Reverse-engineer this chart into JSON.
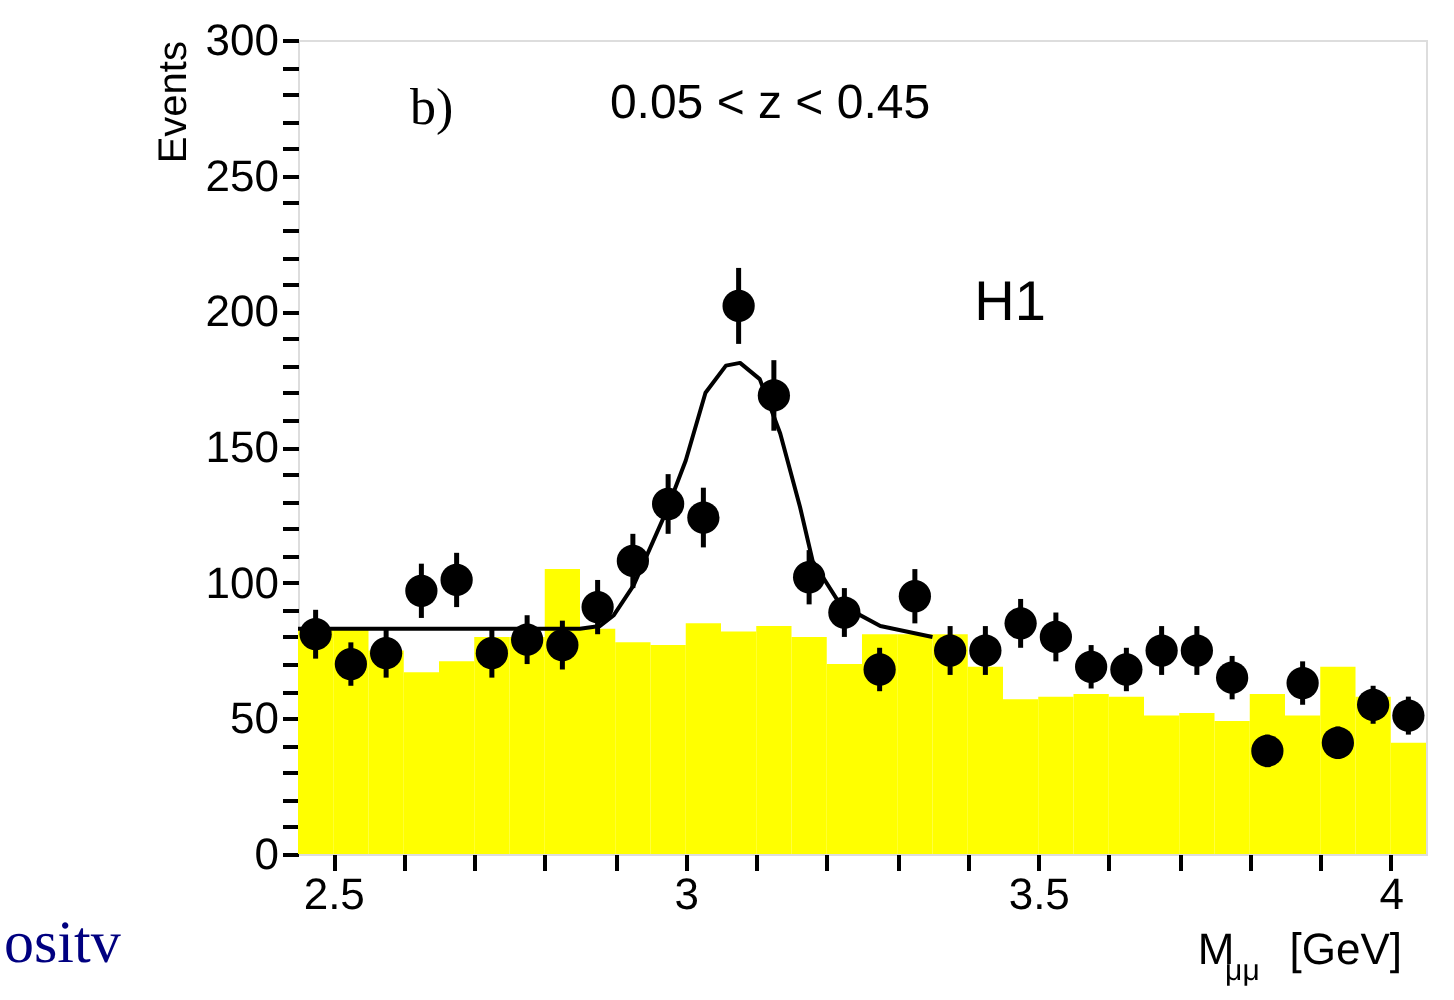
{
  "chart_data": {
    "type": "histogram",
    "xlabel": "M$_{μμ}$ [GeV]",
    "ylabel": "Events",
    "annotations": [
      "b)",
      "0.05 < z < 0.45",
      "H1",
      "ositv"
    ],
    "xlim": [
      2.45,
      4.05
    ],
    "ylim": [
      0,
      300
    ],
    "xticks": [
      {
        "value": 2.5,
        "label": "2.5"
      },
      {
        "value": 2.6,
        "label": null
      },
      {
        "value": 2.7,
        "label": null
      },
      {
        "value": 2.8,
        "label": null
      },
      {
        "value": 2.9,
        "label": null
      },
      {
        "value": 3,
        "label": "3"
      },
      {
        "value": 3.1,
        "label": null
      },
      {
        "value": 3.2,
        "label": null
      },
      {
        "value": 3.3,
        "label": null
      },
      {
        "value": 3.4,
        "label": null
      },
      {
        "value": 3.5,
        "label": "3.5"
      },
      {
        "value": 3.6,
        "label": null
      },
      {
        "value": 3.7,
        "label": null
      },
      {
        "value": 3.8,
        "label": null
      },
      {
        "value": 3.9,
        "label": null
      },
      {
        "value": 4,
        "label": "4"
      }
    ],
    "yticks": [
      0,
      {
        "value": 10,
        "label": null
      },
      {
        "value": 20,
        "label": null
      },
      {
        "value": 30,
        "label": null
      },
      {
        "value": 40,
        "label": null
      },
      50,
      {
        "value": 60,
        "label": null
      },
      {
        "value": 70,
        "label": null
      },
      {
        "value": 80,
        "label": null
      },
      {
        "value": 90,
        "label": null
      },
      100,
      {
        "value": 110,
        "label": null
      },
      {
        "value": 120,
        "label": null
      },
      {
        "value": 130,
        "label": null
      },
      {
        "value": 140,
        "label": null
      },
      150,
      {
        "value": 160,
        "label": null
      },
      {
        "value": 170,
        "label": null
      },
      {
        "value": 180,
        "label": null
      },
      {
        "value": 190,
        "label": null
      },
      200,
      {
        "value": 210,
        "label": null
      },
      {
        "value": 220,
        "label": null
      },
      {
        "value": 230,
        "label": null
      },
      {
        "value": 240,
        "label": null
      },
      250,
      {
        "value": 260,
        "label": null
      },
      {
        "value": 270,
        "label": null
      },
      {
        "value": 280,
        "label": null
      },
      {
        "value": 290,
        "label": null
      },
      300
    ],
    "grid": false,
    "series": [
      {
        "color": "#ffff00",
        "bins": [
          2.45,
          2.5,
          2.55,
          2.6,
          2.65,
          2.7,
          2.75,
          2.8,
          2.85,
          2.9,
          2.95,
          3.0,
          3.05,
          3.1,
          3.15,
          3.2,
          3.25,
          3.3,
          3.35,
          3.4,
          3.45,
          3.5,
          3.55,
          3.6,
          3.65,
          3.7,
          3.75,
          3.8,
          3.85,
          3.9,
          3.95,
          4.0,
          4.05
        ],
        "values": [
          83,
          83,
          75,
          67,
          71,
          80,
          80,
          105,
          83,
          78,
          77,
          85,
          82,
          84,
          80,
          70,
          81,
          81,
          81,
          69,
          57,
          58,
          59,
          58,
          51,
          52,
          49,
          59,
          51,
          69,
          58,
          41
        ]
      },
      {
        "type": "line",
        "color": "#000000",
        "line_style": "solid",
        "marker": "none",
        "x": [
          2.45,
          2.85,
          2.878,
          2.898,
          2.926,
          2.972,
          3.0,
          3.028,
          3.057,
          3.077,
          3.105,
          3.134,
          3.162,
          3.18,
          3.219,
          3.276,
          3.35
        ],
        "values": [
          83,
          83,
          84,
          88,
          99,
          126,
          145,
          170,
          180,
          181,
          175,
          155,
          128,
          108,
          92,
          84,
          80
        ]
      },
      {
        "type": "scatter",
        "color": "#000000",
        "marker": "circle",
        "x": [
          2.475,
          2.525,
          2.575,
          2.625,
          2.675,
          2.725,
          2.775,
          2.825,
          2.875,
          2.925,
          2.975,
          3.025,
          3.075,
          3.125,
          3.175,
          3.225,
          3.275,
          3.325,
          3.375,
          3.425,
          3.475,
          3.525,
          3.575,
          3.625,
          3.675,
          3.725,
          3.775,
          3.825,
          3.875,
          3.925,
          3.975,
          4.025
        ],
        "values": [
          81,
          70,
          74,
          97,
          101,
          74,
          79,
          77,
          91,
          108,
          129,
          124,
          202,
          169,
          102,
          89,
          68,
          95,
          75,
          75,
          85,
          80,
          69,
          68,
          75,
          75,
          65,
          38,
          63,
          41,
          55,
          51
        ],
        "errors": [
          9,
          8,
          9,
          10,
          10,
          9,
          9,
          9,
          10,
          10,
          11,
          11,
          14,
          13,
          10,
          9,
          8,
          10,
          9,
          9,
          9,
          9,
          8,
          8,
          9,
          9,
          8,
          6,
          8,
          6,
          7,
          7
        ]
      }
    ]
  }
}
